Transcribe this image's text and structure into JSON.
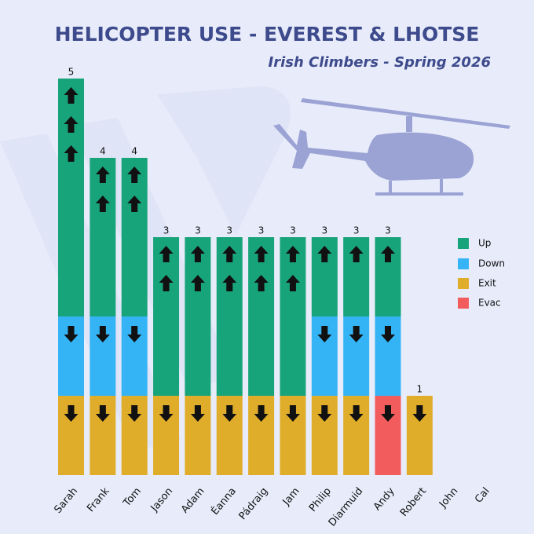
{
  "chart_data": {
    "type": "stacked-bar",
    "title": "HELICOPTER USE - EVEREST & LHOTSE",
    "subtitle": "Irish Climbers - Spring 2026",
    "categories": [
      "Sarah",
      "Frank",
      "Tom",
      "Jason",
      "Adam",
      "Éanna",
      "Pádraig",
      "Jam",
      "Philip",
      "Diarmuid",
      "Andy",
      "Robert",
      "John",
      "Cal"
    ],
    "series": [
      {
        "name": "Evac",
        "color": "#f25c5c",
        "values": [
          0,
          0,
          0,
          0,
          0,
          0,
          0,
          0,
          0,
          0,
          1,
          0,
          0,
          0
        ]
      },
      {
        "name": "Exit",
        "color": "#e0ad2a",
        "values": [
          1,
          1,
          1,
          1,
          1,
          1,
          1,
          1,
          1,
          1,
          0,
          1,
          0,
          0
        ]
      },
      {
        "name": "Down",
        "color": "#35b4f5",
        "values": [
          1,
          1,
          1,
          0,
          0,
          0,
          0,
          0,
          1,
          1,
          1,
          0,
          0,
          0
        ]
      },
      {
        "name": "Up",
        "color": "#18a47a",
        "values": [
          3,
          2,
          2,
          2,
          2,
          2,
          2,
          2,
          1,
          1,
          1,
          0,
          0,
          0
        ]
      }
    ],
    "totals": [
      5,
      4,
      4,
      3,
      3,
      3,
      3,
      3,
      3,
      3,
      3,
      1,
      null,
      null
    ],
    "ylim": [
      0,
      5
    ],
    "legend": "right"
  }
}
